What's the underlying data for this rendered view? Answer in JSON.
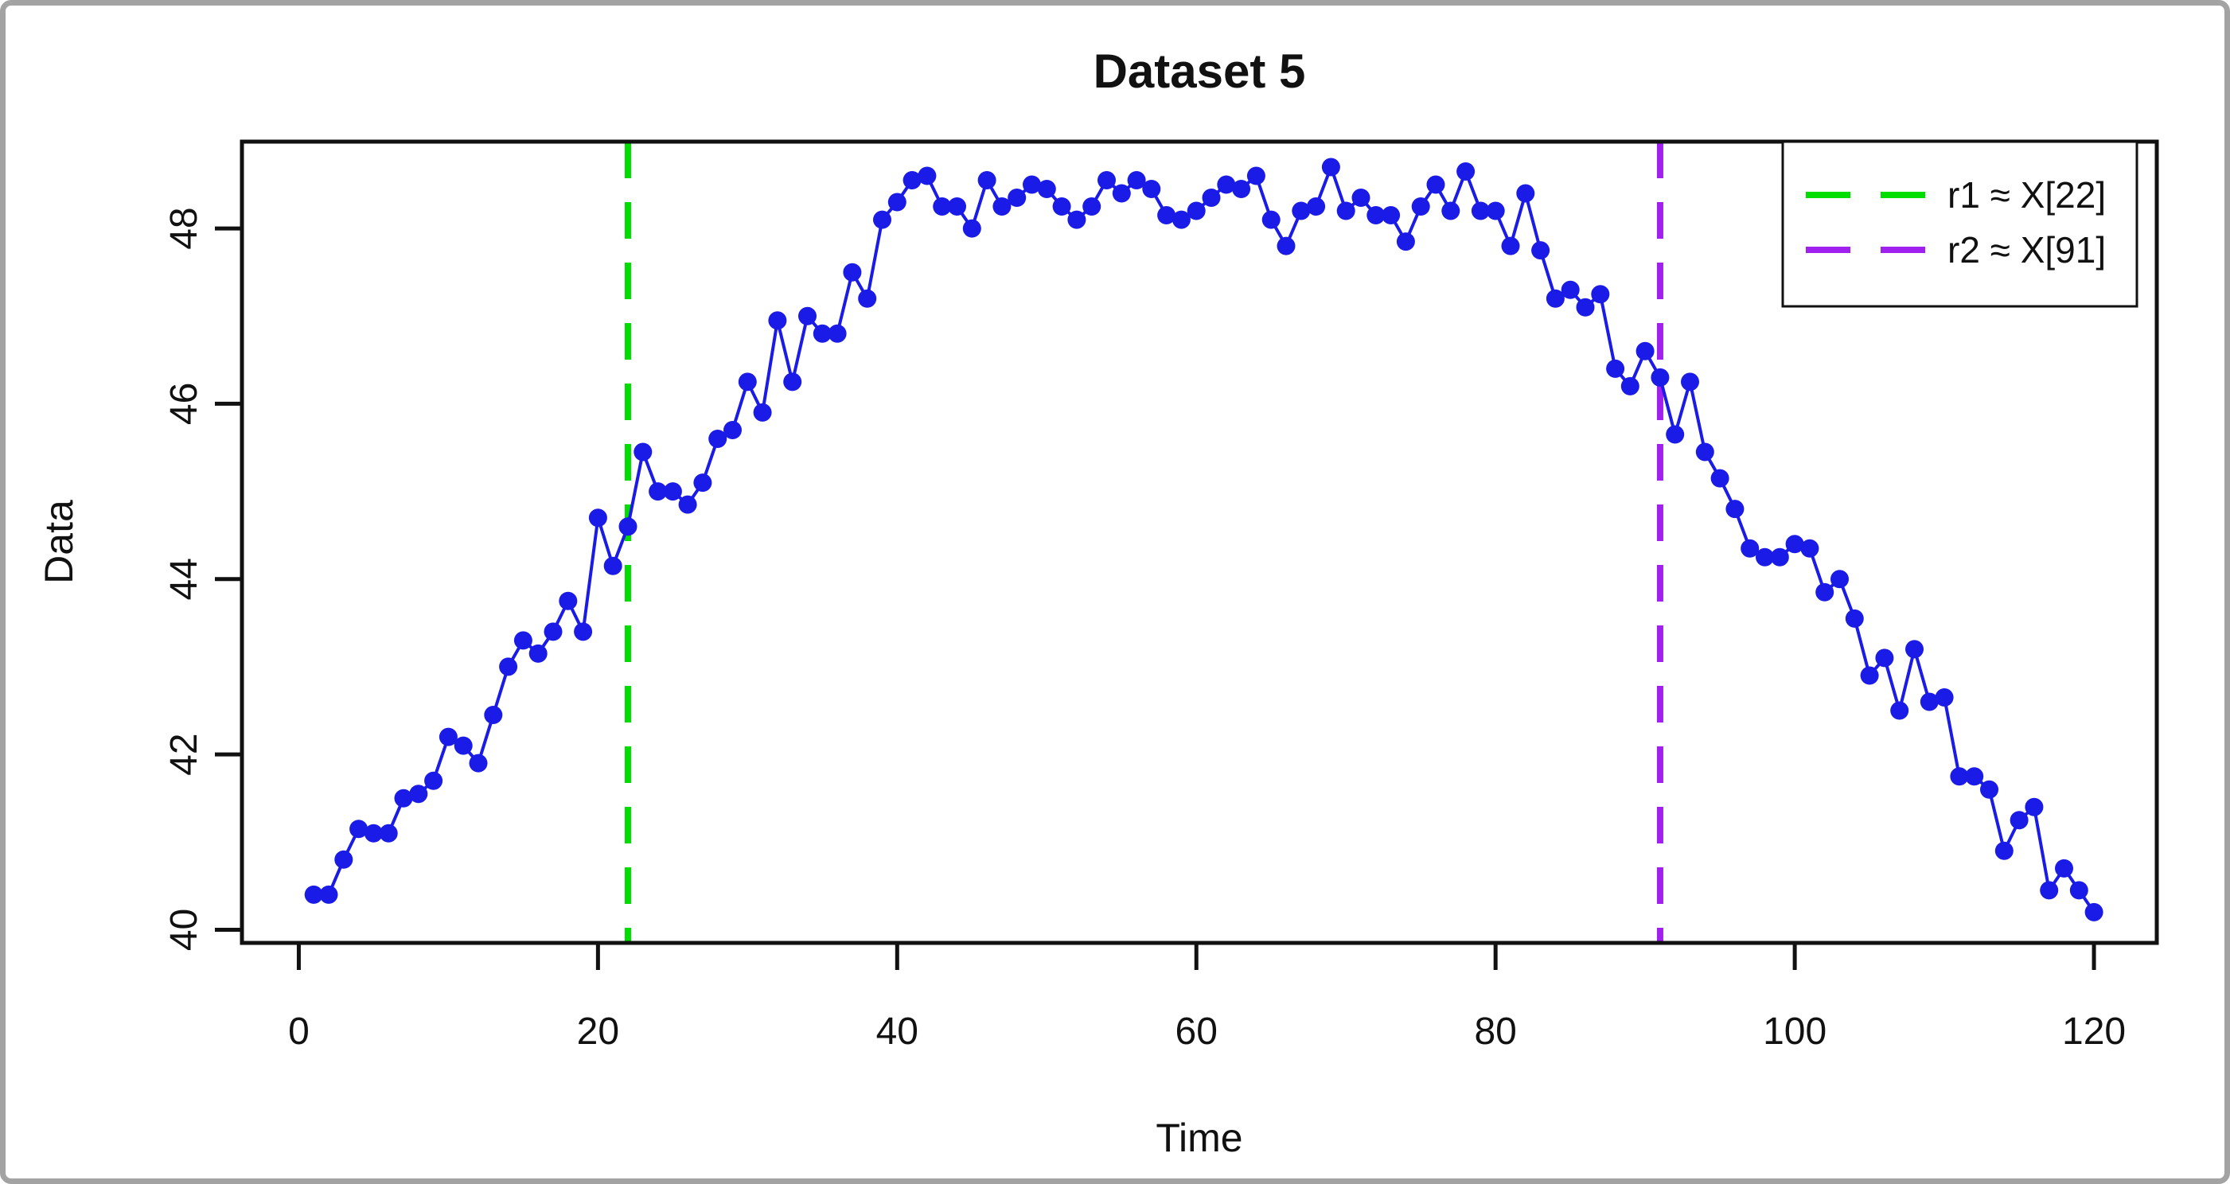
{
  "window": {
    "frame_color": "#a3a3a3",
    "background": "#ffffff"
  },
  "chart_data": {
    "type": "line",
    "title": "Dataset 5",
    "xlabel": "Time",
    "ylabel": "Data",
    "x_ticks": [
      0,
      20,
      40,
      60,
      80,
      100,
      120
    ],
    "y_ticks": [
      40,
      42,
      44,
      46,
      48
    ],
    "xlim": [
      -3.8,
      124.2
    ],
    "ylim": [
      39.85,
      48.99
    ],
    "grid": false,
    "series_color": "#1b1be8",
    "marker": "filled-circle",
    "x_start": 1,
    "x_step": 1,
    "values": [
      40.4,
      40.4,
      40.8,
      41.15,
      41.1,
      41.1,
      41.5,
      41.55,
      41.7,
      42.2,
      42.1,
      41.9,
      42.45,
      43.0,
      43.3,
      43.15,
      43.4,
      43.75,
      43.4,
      44.7,
      44.15,
      44.6,
      45.45,
      45.0,
      45.0,
      44.85,
      45.1,
      45.6,
      45.7,
      46.25,
      45.9,
      46.95,
      46.25,
      47.0,
      46.8,
      46.8,
      47.5,
      47.2,
      48.1,
      48.3,
      48.55,
      48.6,
      48.25,
      48.25,
      48.0,
      48.55,
      48.25,
      48.35,
      48.5,
      48.45,
      48.25,
      48.1,
      48.25,
      48.55,
      48.4,
      48.55,
      48.45,
      48.15,
      48.1,
      48.2,
      48.35,
      48.5,
      48.45,
      48.6,
      48.1,
      47.8,
      48.2,
      48.25,
      48.7,
      48.2,
      48.35,
      48.15,
      48.15,
      47.85,
      48.25,
      48.5,
      48.2,
      48.65,
      48.2,
      48.2,
      47.8,
      48.4,
      47.75,
      47.2,
      47.3,
      47.1,
      47.25,
      46.4,
      46.2,
      46.6,
      46.3,
      45.65,
      46.25,
      45.45,
      45.15,
      44.8,
      44.35,
      44.25,
      44.25,
      44.4,
      44.35,
      43.85,
      44.0,
      43.55,
      42.9,
      43.1,
      42.5,
      43.2,
      42.6,
      42.65,
      41.75,
      41.75,
      41.6,
      40.9,
      41.25,
      41.4,
      40.45,
      40.7,
      40.45,
      40.2
    ],
    "vlines": [
      {
        "x": 22,
        "color": "#00dd00",
        "style": "dashed"
      },
      {
        "x": 91,
        "color": "#a020f0",
        "style": "dashed"
      }
    ],
    "legend": {
      "position": "top-right",
      "entries": [
        {
          "label": "r1 ≈ X[22]",
          "color": "#00dd00",
          "dash": true
        },
        {
          "label": "r2 ≈ X[91]",
          "color": "#a020f0",
          "dash": true
        }
      ]
    }
  }
}
